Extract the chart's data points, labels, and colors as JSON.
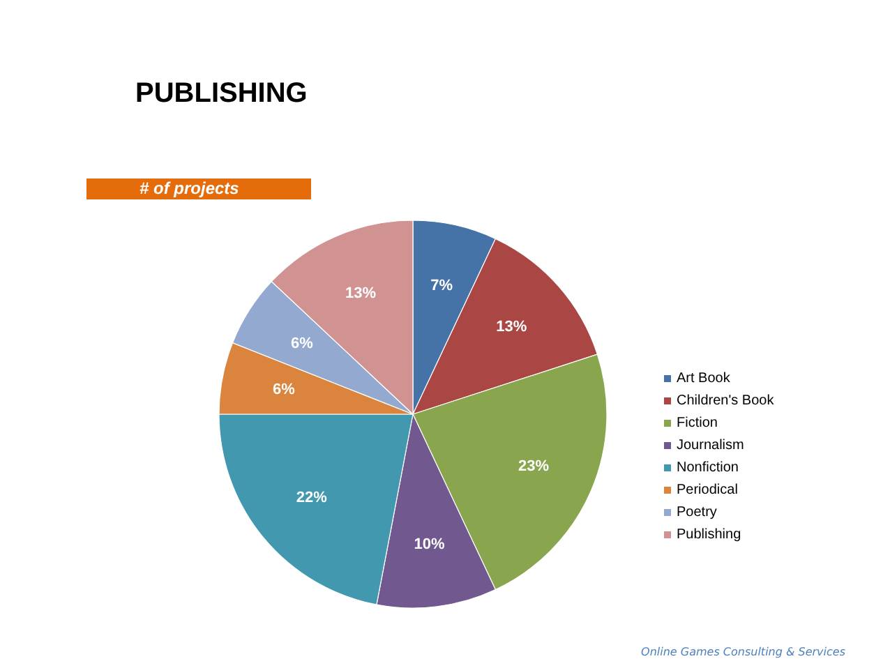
{
  "chart_data": {
    "type": "pie",
    "title": "PUBLISHING",
    "subtitle": "# of projects",
    "categories": [
      "Art Book",
      "Children's Book",
      "Fiction",
      "Journalism",
      "Nonfiction",
      "Periodical",
      "Poetry",
      "Publishing"
    ],
    "values": [
      7,
      13,
      23,
      10,
      22,
      6,
      6,
      13
    ],
    "value_labels": [
      "7%",
      "13%",
      "23%",
      "10%",
      "22%",
      "6%",
      "6%",
      "13%"
    ],
    "colors": [
      "#4572a7",
      "#aa4643",
      "#89a54e",
      "#71588f",
      "#4198af",
      "#db843d",
      "#93a9cf",
      "#d19392"
    ],
    "legend": "right",
    "annotations": [
      "Online Games Consulting & Services"
    ]
  }
}
